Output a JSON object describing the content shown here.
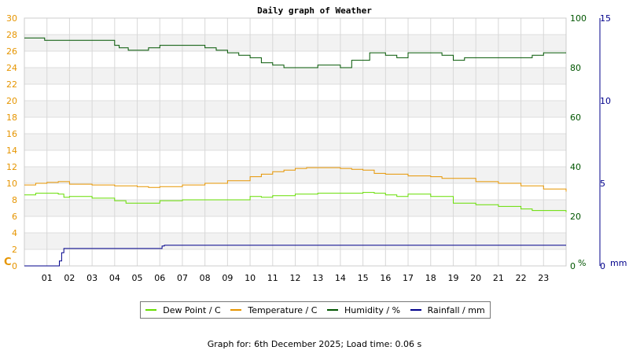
{
  "chart_data": {
    "type": "line",
    "title": "Daily graph of Weather",
    "x_ticks": [
      "01",
      "02",
      "03",
      "04",
      "05",
      "06",
      "07",
      "08",
      "09",
      "10",
      "11",
      "12",
      "13",
      "14",
      "15",
      "16",
      "17",
      "18",
      "19",
      "20",
      "21",
      "22",
      "23"
    ],
    "xlim": [
      0,
      24
    ],
    "grid": true,
    "legend_position": "bottom",
    "axes": {
      "left": {
        "label": "C",
        "color": "#e69500",
        "ylim": [
          0,
          30
        ],
        "ticks": [
          0,
          2,
          4,
          6,
          8,
          10,
          12,
          14,
          16,
          18,
          20,
          22,
          24,
          26,
          28,
          30
        ]
      },
      "right1": {
        "label": "%",
        "color": "#005500",
        "ylim": [
          0,
          100
        ],
        "ticks": [
          0,
          20,
          40,
          60,
          80,
          100
        ]
      },
      "right2": {
        "label": "mm",
        "color": "#00008b",
        "ylim": [
          0,
          15
        ],
        "ticks": [
          0,
          5,
          10,
          15
        ]
      }
    },
    "series": [
      {
        "name": "Dew Point / C",
        "color": "#66dd00",
        "axis": "left",
        "x": [
          0,
          0.5,
          1,
          1.5,
          1.75,
          2,
          3,
          4,
          4.5,
          5,
          6,
          7,
          8,
          9,
          10,
          10.5,
          11,
          12,
          13,
          14,
          15,
          15.5,
          16,
          16.5,
          17,
          18,
          19,
          20,
          21,
          22,
          22.5,
          23,
          24
        ],
        "y": [
          8.6,
          8.8,
          8.8,
          8.7,
          8.3,
          8.4,
          8.2,
          7.9,
          7.6,
          7.6,
          7.9,
          8.0,
          8.0,
          8.0,
          8.4,
          8.3,
          8.5,
          8.7,
          8.8,
          8.8,
          8.9,
          8.8,
          8.6,
          8.4,
          8.7,
          8.4,
          7.6,
          7.4,
          7.2,
          6.9,
          6.7,
          6.7,
          6.5
        ]
      },
      {
        "name": "Temperature / C",
        "color": "#e69500",
        "axis": "left",
        "x": [
          0,
          0.5,
          1,
          1.5,
          2,
          3,
          4,
          5,
          5.5,
          6,
          7,
          8,
          9,
          10,
          10.5,
          11,
          11.5,
          12,
          12.5,
          13,
          13.5,
          14,
          14.5,
          15,
          15.5,
          16,
          17,
          18,
          18.5,
          19,
          20,
          21,
          22,
          23,
          24
        ],
        "y": [
          9.8,
          10.0,
          10.1,
          10.2,
          9.9,
          9.8,
          9.7,
          9.6,
          9.5,
          9.6,
          9.8,
          10.0,
          10.3,
          10.8,
          11.1,
          11.4,
          11.6,
          11.8,
          11.9,
          11.9,
          11.9,
          11.8,
          11.7,
          11.6,
          11.2,
          11.1,
          10.9,
          10.8,
          10.6,
          10.6,
          10.2,
          10.0,
          9.7,
          9.3,
          9.0
        ]
      },
      {
        "name": "Humidity / %",
        "color": "#005500",
        "axis": "right1",
        "x": [
          0,
          0.8,
          0.9,
          1.5,
          2,
          2.5,
          3,
          3.5,
          4,
          4.2,
          4.6,
          5,
          5.5,
          6,
          6.5,
          7,
          7.5,
          8,
          8.5,
          9,
          9.5,
          10,
          10.5,
          11,
          11.5,
          12,
          12.5,
          13,
          13.5,
          14,
          14.5,
          15,
          15.3,
          15.7,
          16,
          16.5,
          17,
          17.5,
          18,
          18.5,
          19,
          19.5,
          20,
          21,
          22,
          22.5,
          23,
          24
        ],
        "y": [
          92,
          92,
          91,
          91,
          91,
          91,
          91,
          91,
          89,
          88,
          87,
          87,
          88,
          89,
          89,
          89,
          89,
          88,
          87,
          86,
          85,
          84,
          82,
          81,
          80,
          80,
          80,
          81,
          81,
          80,
          83,
          83,
          86,
          86,
          85,
          84,
          86,
          86,
          86,
          85,
          83,
          84,
          84,
          84,
          84,
          85,
          86,
          86
        ]
      },
      {
        "name": "Rainfall / mm",
        "color": "#00008b",
        "axis": "right2",
        "x": [
          0,
          1.5,
          1.55,
          1.65,
          1.75,
          2,
          6,
          6.1,
          6.2,
          24
        ],
        "y": [
          0,
          0,
          0.3,
          0.8,
          1.05,
          1.05,
          1.05,
          1.2,
          1.25,
          1.25
        ]
      }
    ]
  },
  "footer": {
    "text": "Graph for: 6th December 2025; Load time: 0.06 s"
  }
}
